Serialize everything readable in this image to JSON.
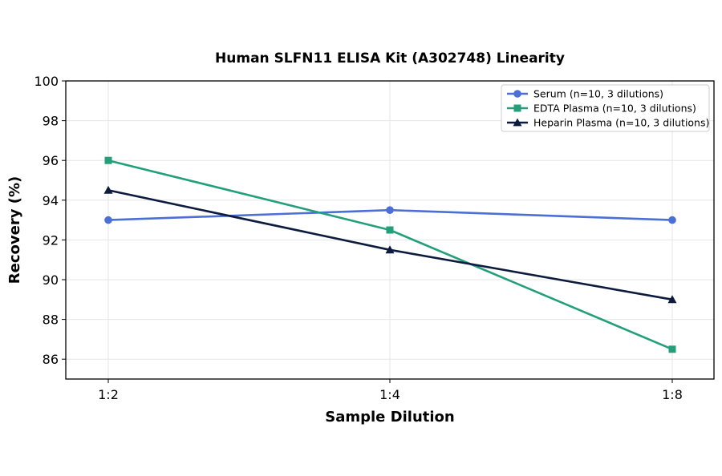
{
  "chart_data": {
    "type": "line",
    "title": "Human SLFN11 ELISA Kit (A302748) Linearity",
    "xlabel": "Sample Dilution",
    "ylabel": "Recovery (%)",
    "categories": [
      "1:2",
      "1:4",
      "1:8"
    ],
    "ylim": [
      85,
      100
    ],
    "yticks": [
      86,
      88,
      90,
      92,
      94,
      96,
      98,
      100
    ],
    "grid": true,
    "legend_position": "top-right",
    "series": [
      {
        "name": "Serum (n=10, 3 dilutions)",
        "values": [
          93.0,
          93.5,
          93.0
        ],
        "color": "#4c6fd6",
        "marker": "circle"
      },
      {
        "name": "EDTA Plasma (n=10, 3 dilutions)",
        "values": [
          96.0,
          92.5,
          86.5
        ],
        "color": "#23a07a",
        "marker": "square"
      },
      {
        "name": "Heparin Plasma (n=10, 3 dilutions)",
        "values": [
          94.5,
          91.5,
          89.0
        ],
        "color": "#0d1b3e",
        "marker": "triangle"
      }
    ]
  }
}
